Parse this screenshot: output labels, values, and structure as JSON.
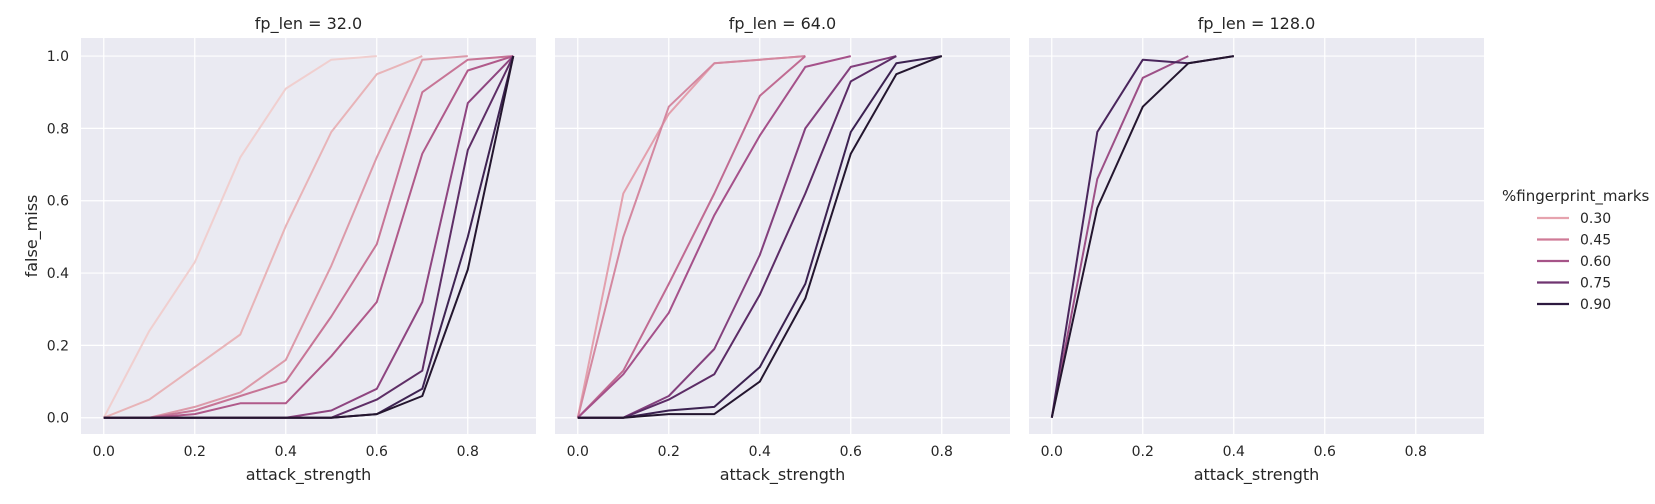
{
  "chart_data": {
    "type": "line",
    "xlabel": "attack_strength",
    "ylabel": "false_miss",
    "xlim": [
      -0.05,
      0.95
    ],
    "ylim": [
      -0.045,
      1.05
    ],
    "xticks": [
      "0.0",
      "0.2",
      "0.4",
      "0.6",
      "0.8"
    ],
    "yticks": [
      "0.0",
      "0.2",
      "0.4",
      "0.6",
      "0.8",
      "1.0"
    ],
    "grid": true,
    "legend": {
      "title": "%fingerprint_marks",
      "placement": "right",
      "entries": [
        {
          "label": "0.30",
          "color": "#e6a3ae"
        },
        {
          "label": "0.45",
          "color": "#cf7a96"
        },
        {
          "label": "0.60",
          "color": "#a65488"
        },
        {
          "label": "0.75",
          "color": "#6f3570"
        },
        {
          "label": "0.90",
          "color": "#2d1a40"
        }
      ]
    },
    "panels": [
      {
        "title": "fp_len = 32.0",
        "series": [
          {
            "color": "#f0cfcf",
            "x": [
              0.0,
              0.1,
              0.2,
              0.3,
              0.4,
              0.5,
              0.6
            ],
            "y": [
              0.0,
              0.24,
              0.43,
              0.72,
              0.91,
              0.99,
              1.0
            ]
          },
          {
            "color": "#e8b4b8",
            "x": [
              0.0,
              0.1,
              0.2,
              0.3,
              0.4,
              0.5,
              0.6,
              0.7
            ],
            "y": [
              0.0,
              0.05,
              0.14,
              0.23,
              0.53,
              0.79,
              0.95,
              1.0
            ]
          },
          {
            "color": "#dc9aa9",
            "x": [
              0.0,
              0.1,
              0.2,
              0.3,
              0.4,
              0.5,
              0.6,
              0.7,
              0.8
            ],
            "y": [
              0.0,
              0.0,
              0.03,
              0.07,
              0.16,
              0.42,
              0.72,
              0.99,
              1.0
            ]
          },
          {
            "color": "#c77596",
            "x": [
              0.0,
              0.1,
              0.2,
              0.3,
              0.4,
              0.5,
              0.6,
              0.7,
              0.8,
              0.9
            ],
            "y": [
              0.0,
              0.0,
              0.02,
              0.06,
              0.1,
              0.28,
              0.48,
              0.9,
              0.99,
              1.0
            ]
          },
          {
            "color": "#b05a8a",
            "x": [
              0.0,
              0.1,
              0.2,
              0.3,
              0.4,
              0.5,
              0.6,
              0.7,
              0.8,
              0.9
            ],
            "y": [
              0.0,
              0.0,
              0.01,
              0.04,
              0.04,
              0.17,
              0.32,
              0.73,
              0.96,
              1.0
            ]
          },
          {
            "color": "#8e4580",
            "x": [
              0.0,
              0.1,
              0.2,
              0.3,
              0.4,
              0.5,
              0.6,
              0.7,
              0.8,
              0.9
            ],
            "y": [
              0.0,
              0.0,
              0.0,
              0.0,
              0.0,
              0.02,
              0.08,
              0.32,
              0.87,
              1.0
            ]
          },
          {
            "color": "#5e2e66",
            "x": [
              0.0,
              0.1,
              0.2,
              0.3,
              0.4,
              0.5,
              0.6,
              0.7,
              0.8,
              0.9
            ],
            "y": [
              0.0,
              0.0,
              0.0,
              0.0,
              0.0,
              0.0,
              0.05,
              0.13,
              0.74,
              1.0
            ]
          },
          {
            "color": "#3e2352",
            "x": [
              0.0,
              0.1,
              0.2,
              0.3,
              0.4,
              0.5,
              0.6,
              0.7,
              0.8,
              0.9
            ],
            "y": [
              0.0,
              0.0,
              0.0,
              0.0,
              0.0,
              0.0,
              0.01,
              0.08,
              0.5,
              1.0
            ]
          },
          {
            "color": "#24162f",
            "x": [
              0.0,
              0.1,
              0.2,
              0.3,
              0.4,
              0.5,
              0.6,
              0.7,
              0.8,
              0.9
            ],
            "y": [
              0.0,
              0.0,
              0.0,
              0.0,
              0.0,
              0.0,
              0.01,
              0.06,
              0.41,
              1.0
            ]
          }
        ]
      },
      {
        "title": "fp_len = 64.0",
        "series": [
          {
            "color": "#e3a0ad",
            "x": [
              0.0,
              0.1,
              0.2,
              0.3,
              0.4,
              0.5
            ],
            "y": [
              0.0,
              0.62,
              0.84,
              0.98,
              0.99,
              1.0
            ]
          },
          {
            "color": "#d488a0",
            "x": [
              0.0,
              0.1,
              0.2,
              0.3,
              0.4,
              0.5
            ],
            "y": [
              0.0,
              0.5,
              0.86,
              0.98,
              0.99,
              1.0
            ]
          },
          {
            "color": "#c06b92",
            "x": [
              0.0,
              0.1,
              0.2,
              0.3,
              0.4,
              0.5
            ],
            "y": [
              0.0,
              0.13,
              0.37,
              0.62,
              0.89,
              1.0
            ]
          },
          {
            "color": "#a5518a",
            "x": [
              0.0,
              0.1,
              0.2,
              0.3,
              0.4,
              0.5,
              0.6
            ],
            "y": [
              0.0,
              0.12,
              0.29,
              0.56,
              0.78,
              0.97,
              1.0
            ]
          },
          {
            "color": "#83407d",
            "x": [
              0.0,
              0.1,
              0.2,
              0.3,
              0.4,
              0.5,
              0.6,
              0.7
            ],
            "y": [
              0.0,
              0.0,
              0.06,
              0.19,
              0.45,
              0.8,
              0.97,
              1.0
            ]
          },
          {
            "color": "#5c2c66",
            "x": [
              0.0,
              0.1,
              0.2,
              0.3,
              0.4,
              0.5,
              0.6,
              0.7
            ],
            "y": [
              0.0,
              0.0,
              0.05,
              0.12,
              0.34,
              0.62,
              0.93,
              1.0
            ]
          },
          {
            "color": "#3b2150",
            "x": [
              0.0,
              0.1,
              0.2,
              0.3,
              0.4,
              0.5,
              0.6,
              0.7,
              0.8
            ],
            "y": [
              0.0,
              0.0,
              0.02,
              0.03,
              0.14,
              0.37,
              0.79,
              0.98,
              1.0
            ]
          },
          {
            "color": "#24162f",
            "x": [
              0.0,
              0.1,
              0.2,
              0.3,
              0.4,
              0.5,
              0.6,
              0.7,
              0.8
            ],
            "y": [
              0.0,
              0.0,
              0.01,
              0.01,
              0.1,
              0.33,
              0.73,
              0.95,
              1.0
            ]
          }
        ]
      },
      {
        "title": "fp_len = 128.0",
        "series": [
          {
            "color": "#9c4f86",
            "x": [
              0.0,
              0.1,
              0.2,
              0.3
            ],
            "y": [
              0.0,
              0.66,
              0.94,
              1.0
            ]
          },
          {
            "color": "#4a265c",
            "x": [
              0.0,
              0.1,
              0.2,
              0.3,
              0.4
            ],
            "y": [
              0.0,
              0.79,
              0.99,
              0.98,
              1.0
            ]
          },
          {
            "color": "#24162f",
            "x": [
              0.0,
              0.1,
              0.2,
              0.3,
              0.4
            ],
            "y": [
              0.0,
              0.58,
              0.86,
              0.98,
              1.0
            ]
          }
        ]
      }
    ]
  }
}
